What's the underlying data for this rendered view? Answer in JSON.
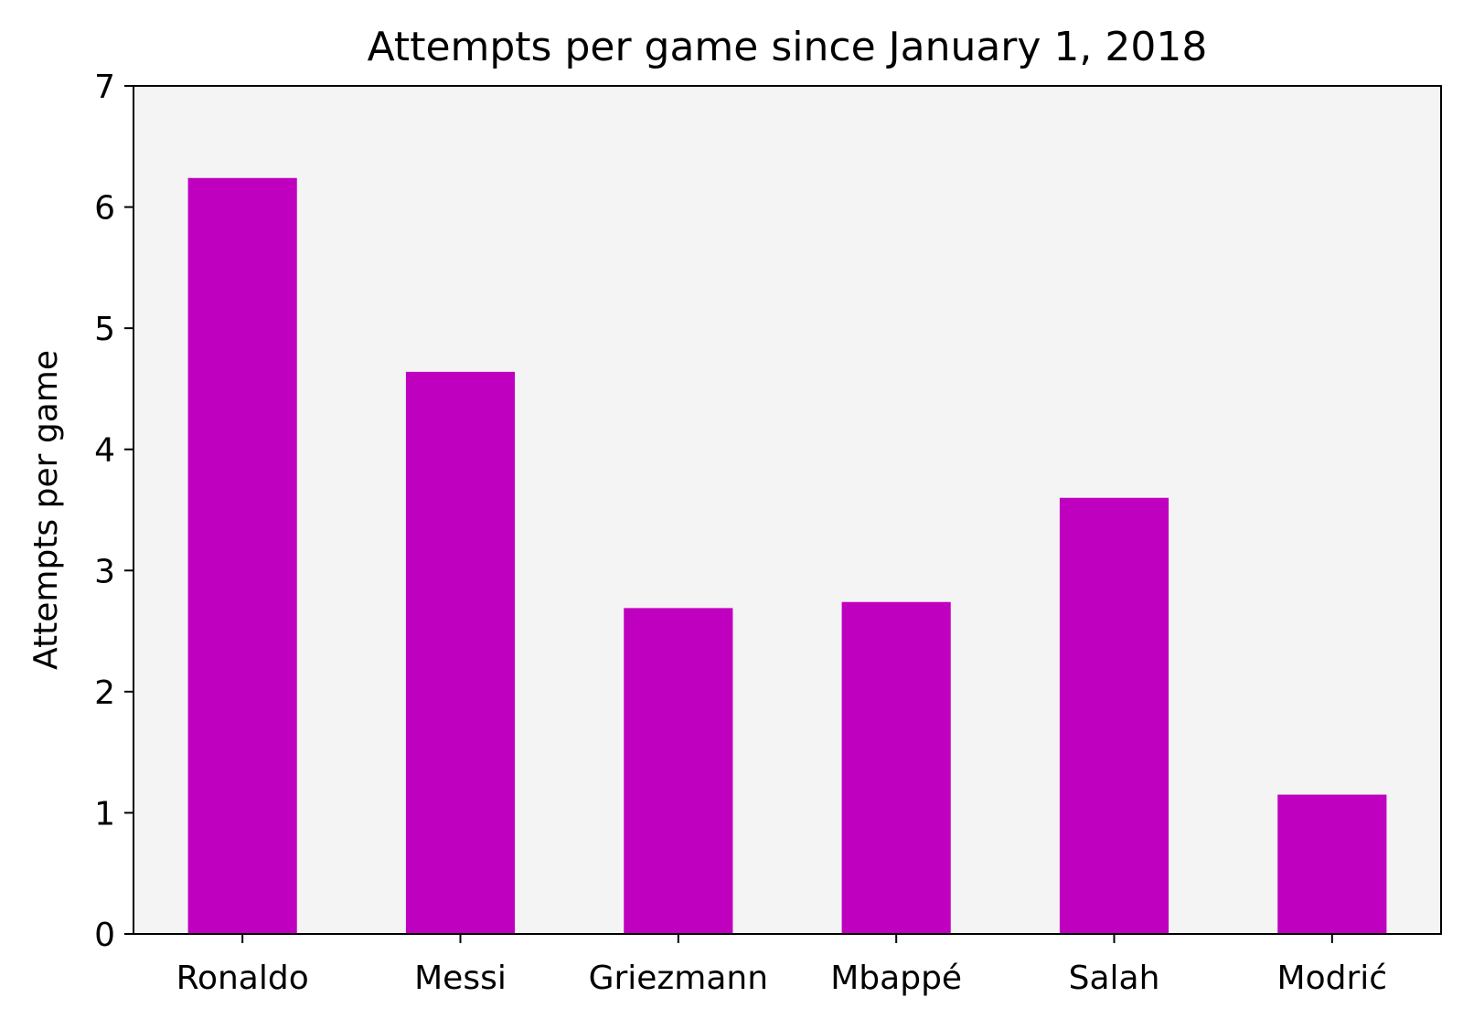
{
  "chart_data": {
    "type": "bar",
    "title": "Attempts per game since January 1, 2018",
    "xlabel": "",
    "ylabel": "Attempts per game",
    "categories": [
      "Ronaldo",
      "Messi",
      "Griezmann",
      "Mbappé",
      "Salah",
      "Modrić"
    ],
    "values": [
      6.24,
      4.64,
      2.69,
      2.74,
      3.6,
      1.15
    ],
    "ylim": [
      0,
      7
    ],
    "yticks": [
      "0",
      "1",
      "2",
      "3",
      "4",
      "5",
      "6",
      "7"
    ],
    "grid": false,
    "legend": "none",
    "colors": {
      "bar": "#bf00bf",
      "plot_background": "#f4f4f4",
      "axes": "#000000"
    }
  }
}
